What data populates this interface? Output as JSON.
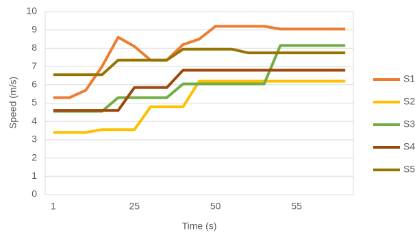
{
  "chart_data": {
    "type": "line",
    "x_label": "Time (s)",
    "y_label": "Speed (m/s)",
    "categories": [
      "1",
      null,
      null,
      null,
      null,
      "25",
      null,
      null,
      null,
      null,
      "50",
      null,
      null,
      null,
      null,
      "55",
      null,
      null,
      null
    ],
    "series": [
      {
        "name": "S1",
        "color": "#ed7d31",
        "values": [
          5.3,
          5.3,
          5.7,
          7.0,
          8.6,
          8.1,
          7.35,
          7.35,
          8.2,
          8.5,
          9.2,
          9.2,
          9.2,
          9.2,
          9.05,
          9.05,
          9.05,
          9.05,
          9.05
        ]
      },
      {
        "name": "S2",
        "color": "#ffc000",
        "values": [
          3.4,
          3.4,
          3.4,
          3.55,
          3.55,
          3.55,
          4.8,
          4.8,
          4.8,
          6.2,
          6.2,
          6.2,
          6.2,
          6.2,
          6.2,
          6.2,
          6.2,
          6.2,
          6.2
        ]
      },
      {
        "name": "S3",
        "color": "#70ad47",
        "values": [
          4.55,
          4.55,
          4.55,
          4.55,
          5.3,
          5.3,
          5.3,
          5.3,
          6.05,
          6.05,
          6.05,
          6.05,
          6.05,
          6.05,
          8.15,
          8.15,
          8.15,
          8.15,
          8.15
        ]
      },
      {
        "name": "S4",
        "color": "#9e480e",
        "values": [
          4.6,
          4.6,
          4.6,
          4.6,
          4.6,
          5.85,
          5.85,
          5.85,
          6.8,
          6.8,
          6.8,
          6.8,
          6.8,
          6.8,
          6.8,
          6.8,
          6.8,
          6.8,
          6.8
        ]
      },
      {
        "name": "S5",
        "color": "#997300",
        "values": [
          6.55,
          6.55,
          6.55,
          6.55,
          7.35,
          7.35,
          7.35,
          7.35,
          7.95,
          7.95,
          7.95,
          7.95,
          7.75,
          7.75,
          7.75,
          7.75,
          7.75,
          7.75,
          7.75
        ]
      }
    ],
    "ylim": [
      0,
      10
    ],
    "yticks": [
      0,
      1,
      2,
      3,
      4,
      5,
      6,
      7,
      8,
      9,
      10
    ],
    "grid": true,
    "legend": "right"
  }
}
